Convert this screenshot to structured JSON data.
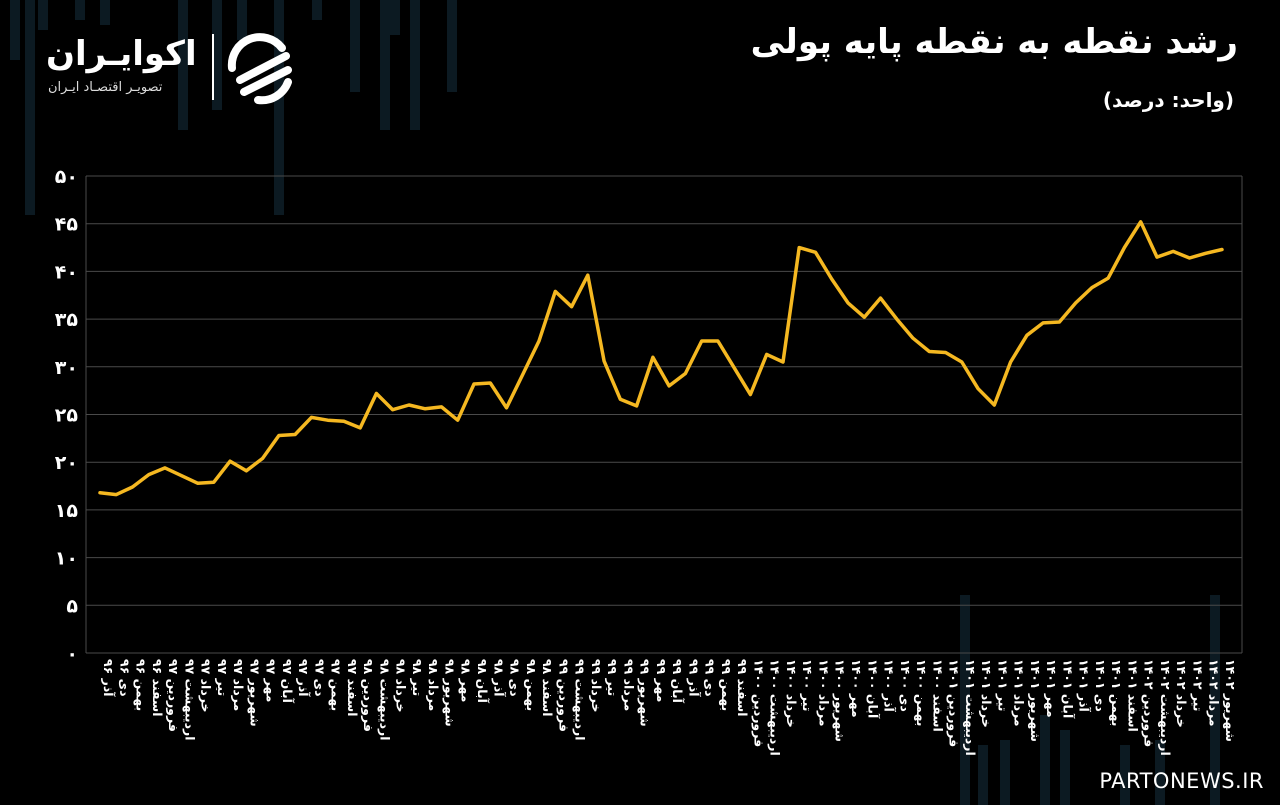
{
  "header": {
    "title": "رشد نقطه به نقطه پایه پولی",
    "unit": "(واحد: درصد)"
  },
  "logo": {
    "name": "اکوایـران",
    "subtitle": "تصویـر اقتصـاد ایـران"
  },
  "watermark": "PARTONEWS.IR",
  "colors": {
    "line": "#f5b821",
    "grid": "#4a4a4a",
    "background": "#000000"
  },
  "chart_data": {
    "type": "line",
    "title": "رشد نقطه به نقطه پایه پولی",
    "xlabel": "",
    "ylabel": "",
    "ylim": [
      0,
      50
    ],
    "yticks": [
      "۰",
      "۵",
      "۱۰",
      "۱۵",
      "۲۰",
      "۲۵",
      "۳۰",
      "۳۵",
      "۴۰",
      "۴۵",
      "۵۰"
    ],
    "grid": true,
    "categories": [
      "آذر ۹۶",
      "دی ۹۶",
      "بهمن ۹۶",
      "اسفند ۹۶",
      "فروردین ۹۷",
      "اردیبهشت ۹۷",
      "خرداد ۹۷",
      "تیر ۹۷",
      "مرداد ۹۷",
      "شهریور ۹۷",
      "مهر ۹۷",
      "آبان ۹۷",
      "آذر ۹۷",
      "دی ۹۷",
      "بهمن ۹۷",
      "اسفند ۹۷",
      "فروردین ۹۸",
      "اردیبهشت ۹۸",
      "خرداد ۹۸",
      "تیر ۹۸",
      "مرداد ۹۸",
      "شهریور ۹۸",
      "مهر ۹۸",
      "آبان ۹۸",
      "آذر ۹۸",
      "دی ۹۸",
      "بهمن ۹۸",
      "اسفند ۹۸",
      "فروردین ۹۹",
      "اردیبهشت ۹۹",
      "خرداد ۹۹",
      "تیر ۹۹",
      "مرداد ۹۹",
      "شهریور ۹۹",
      "مهر ۹۹",
      "آبان ۹۹",
      "آذر ۹۹",
      "دی ۹۹",
      "بهمن ۹۹",
      "اسفند ۹۹",
      "فروردین ۱۴۰۰",
      "اردیبهشت ۱۴۰۰",
      "خرداد ۱۴۰۰",
      "تیر ۱۴۰۰",
      "مرداد ۱۴۰۰",
      "شهریور ۱۴۰۰",
      "مهر ۱۴۰۰",
      "آبان ۱۴۰۰",
      "آذر ۱۴۰۰",
      "دی ۱۴۰۰",
      "بهمن ۱۴۰۰",
      "اسفند ۱۴۰۰",
      "فروردین ۱۴۰۱",
      "اردیبهشت ۱۴۰۱",
      "خرداد ۱۴۰۱",
      "تیر ۱۴۰۱",
      "مرداد ۱۴۰۱",
      "شهریور ۱۴۰۱",
      "مهر ۱۴۰۱",
      "آبان ۱۴۰۱",
      "آذر ۱۴۰۱",
      "دی ۱۴۰۱",
      "بهمن ۱۴۰۱",
      "اسفند ۱۴۰۱",
      "فروردین ۱۴۰۲",
      "اردیبهشت ۱۴۰۲",
      "خرداد ۱۴۰۲",
      "تیر ۱۴۰۲",
      "مرداد ۱۴۰۲",
      "شهریور ۱۴۰۲"
    ],
    "series": [
      {
        "values": [
          16.8,
          16.6,
          17.4,
          18.7,
          19.4,
          18.6,
          17.8,
          17.9,
          20.1,
          19.1,
          20.4,
          22.8,
          22.9,
          24.7,
          24.4,
          24.3,
          23.6,
          27.2,
          25.5,
          26.0,
          25.6,
          25.8,
          24.4,
          28.2,
          28.3,
          25.7,
          29.2,
          32.7,
          37.9,
          36.3,
          39.6,
          30.6,
          26.6,
          25.9,
          31.0,
          28.0,
          29.3,
          32.7,
          32.7,
          29.9,
          27.1,
          31.3,
          30.5,
          42.5,
          42.0,
          39.2,
          36.7,
          35.2,
          37.2,
          35.0,
          33.0,
          31.6,
          31.5,
          30.5,
          27.7,
          26.0,
          30.5,
          33.3,
          34.6,
          34.7,
          36.7,
          38.3,
          39.3,
          42.5,
          45.2,
          41.5,
          42.1,
          41.4,
          41.9,
          42.3
        ]
      }
    ]
  }
}
